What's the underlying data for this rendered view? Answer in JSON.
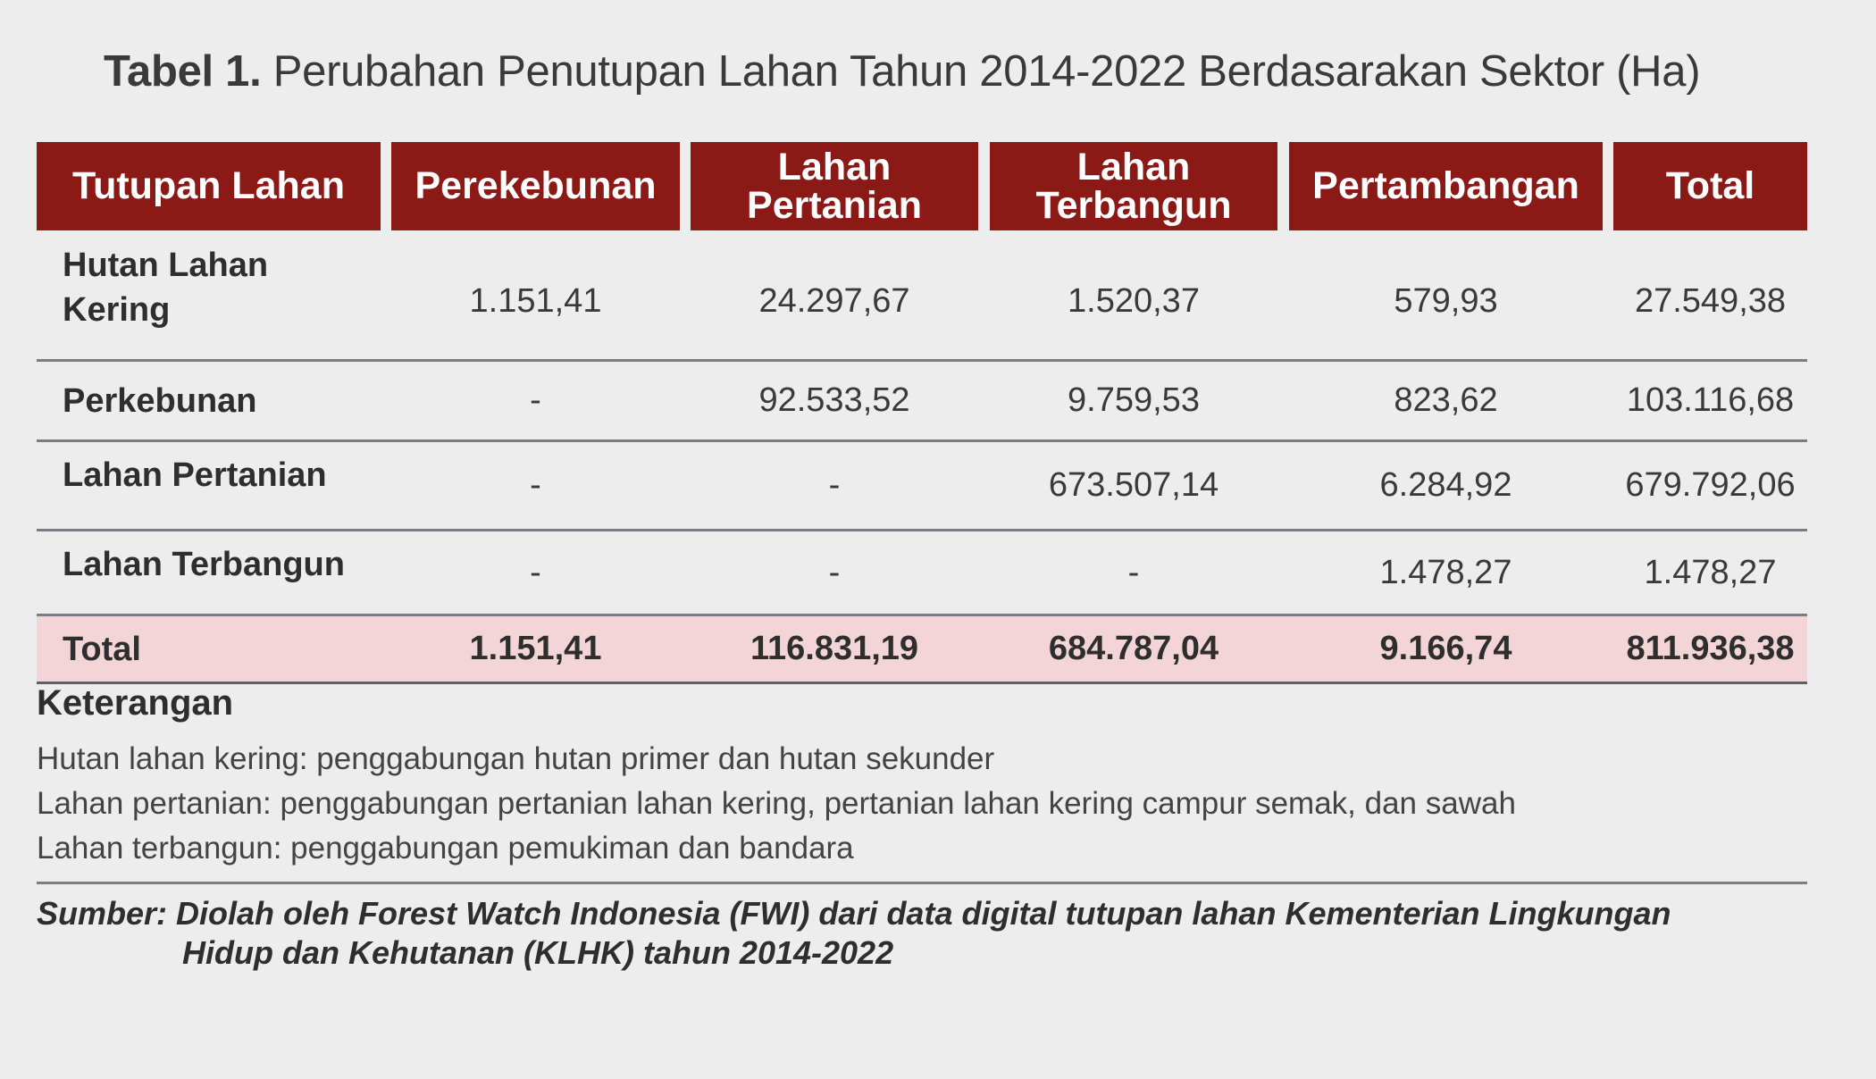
{
  "title": {
    "label": "Tabel 1.",
    "text": "Perubahan Penutupan Lahan Tahun 2014-2022 Berdasarakan Sektor (Ha)"
  },
  "table": {
    "columns": [
      {
        "line1": "Tutupan Lahan",
        "line2": ""
      },
      {
        "line1": "Perekebunan",
        "line2": ""
      },
      {
        "line1": "Lahan",
        "line2": "Pertanian"
      },
      {
        "line1": "Lahan",
        "line2": "Terbangun"
      },
      {
        "line1": "Pertambangan",
        "line2": ""
      },
      {
        "line1": "Total",
        "line2": ""
      }
    ],
    "rows": [
      {
        "label_line1": "Hutan Lahan",
        "label_line2": "Kering",
        "perkebunan": "1.151,41",
        "lahan_pertanian": "24.297,67",
        "lahan_terbangun": "1.520,37",
        "pertambangan": "579,93",
        "total": "27.549,38"
      },
      {
        "label_line1": "Perkebunan",
        "label_line2": "",
        "perkebunan": "-",
        "lahan_pertanian": "92.533,52",
        "lahan_terbangun": "9.759,53",
        "pertambangan": "823,62",
        "total": "103.116,68"
      },
      {
        "label_line1": "Lahan Pertanian",
        "label_line2": "",
        "perkebunan": "-",
        "lahan_pertanian": "-",
        "lahan_terbangun": "673.507,14",
        "pertambangan": "6.284,92",
        "total": "679.792,06"
      },
      {
        "label_line1": "Lahan Terbangun",
        "label_line2": "",
        "perkebunan": "-",
        "lahan_pertanian": "-",
        "lahan_terbangun": "-",
        "pertambangan": "1.478,27",
        "total": "1.478,27"
      }
    ],
    "total_row": {
      "label": "Total",
      "perkebunan": "1.151,41",
      "lahan_pertanian": "116.831,19",
      "lahan_terbangun": "684.787,04",
      "pertambangan": "9.166,74",
      "total": "811.936,38"
    }
  },
  "notes": {
    "title": "Keterangan",
    "items": [
      "Hutan lahan kering: penggabungan hutan primer dan hutan sekunder",
      "Lahan pertanian: penggabungan pertanian lahan kering, pertanian lahan kering campur semak, dan sawah",
      "Lahan terbangun: penggabungan pemukiman dan bandara"
    ]
  },
  "source": {
    "label": "Sumber:",
    "line1": "Diolah oleh Forest Watch Indonesia (FWI) dari data digital tutupan lahan Kementerian Lingkungan",
    "line2": "Hidup dan Kehutanan (KLHK) tahun 2014-2022"
  },
  "colors": {
    "header_bg": "#8b1a17",
    "total_row_bg": "#f4d5d7",
    "page_bg": "#ededed"
  }
}
